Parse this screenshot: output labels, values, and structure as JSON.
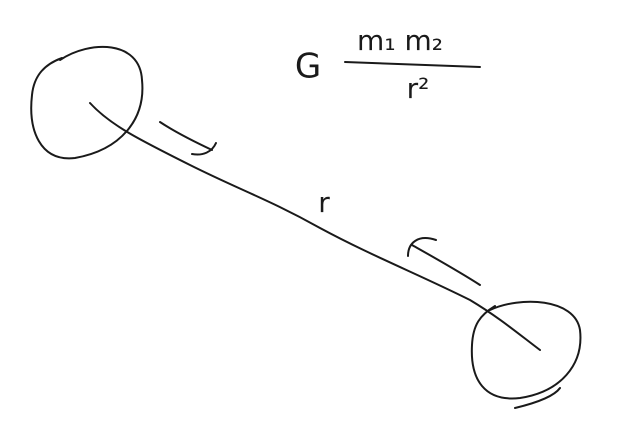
{
  "formula": {
    "constant": "G",
    "numerator": "m₁ m₂",
    "denominator": "r²"
  },
  "distance_label": "r"
}
